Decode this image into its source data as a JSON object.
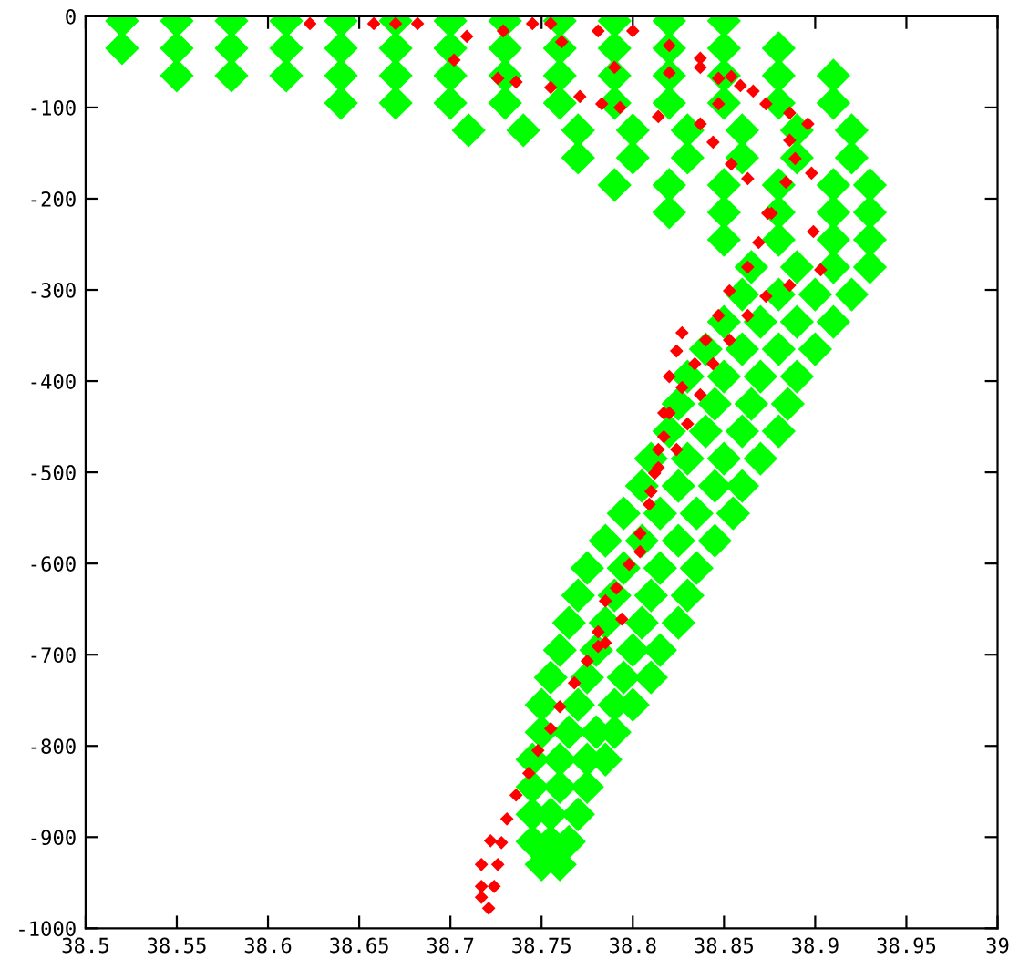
{
  "chart_data": {
    "type": "scatter",
    "xlim": [
      38.5,
      39
    ],
    "ylim": [
      -1000,
      0
    ],
    "xticks": [
      38.5,
      38.55,
      38.6,
      38.65,
      38.7,
      38.75,
      38.8,
      38.85,
      38.9,
      38.95,
      39
    ],
    "yticks": [
      -1000,
      -900,
      -800,
      -700,
      -600,
      -500,
      -400,
      -300,
      -200,
      -100,
      0
    ],
    "grid": false,
    "marker": "diamond",
    "series": [
      {
        "color": "#00ff00",
        "x": [
          38.52,
          38.55,
          38.58,
          38.61,
          38.64,
          38.67,
          38.7,
          38.73,
          38.76,
          38.79,
          38.82,
          38.85,
          38.52,
          38.55,
          38.58,
          38.61,
          38.64,
          38.67,
          38.7,
          38.73,
          38.76,
          38.79,
          38.82,
          38.85,
          38.88,
          38.55,
          38.58,
          38.61,
          38.64,
          38.67,
          38.7,
          38.73,
          38.76,
          38.79,
          38.82,
          38.85,
          38.88,
          38.91,
          38.64,
          38.67,
          38.7,
          38.73,
          38.76,
          38.79,
          38.82,
          38.85,
          38.88,
          38.91,
          38.71,
          38.74,
          38.77,
          38.8,
          38.83,
          38.86,
          38.89,
          38.92,
          38.77,
          38.8,
          38.83,
          38.86,
          38.89,
          38.92,
          38.79,
          38.82,
          38.85,
          38.88,
          38.91,
          38.93,
          38.82,
          38.85,
          38.88,
          38.91,
          38.93,
          38.85,
          38.88,
          38.91,
          38.93,
          38.865,
          38.89,
          38.91,
          38.93,
          38.86,
          38.88,
          38.9,
          38.92,
          38.85,
          38.87,
          38.89,
          38.91,
          38.84,
          38.86,
          38.88,
          38.9,
          38.83,
          38.85,
          38.87,
          38.89,
          38.825,
          38.845,
          38.865,
          38.885,
          38.82,
          38.84,
          38.86,
          38.88,
          38.81,
          38.83,
          38.85,
          38.87,
          38.805,
          38.825,
          38.845,
          38.86,
          38.795,
          38.815,
          38.835,
          38.855,
          38.785,
          38.805,
          38.825,
          38.845,
          38.775,
          38.795,
          38.815,
          38.835,
          38.77,
          38.79,
          38.81,
          38.83,
          38.765,
          38.785,
          38.805,
          38.825,
          38.76,
          38.78,
          38.8,
          38.815,
          38.755,
          38.775,
          38.795,
          38.81,
          38.75,
          38.77,
          38.79,
          38.8,
          38.75,
          38.765,
          38.78,
          38.79,
          38.745,
          38.76,
          38.775,
          38.785,
          38.745,
          38.76,
          38.775,
          38.745,
          38.755,
          38.77,
          38.745,
          38.755,
          38.765,
          38.75,
          38.76
        ],
        "values": [
          -5,
          -5,
          -5,
          -5,
          -5,
          -5,
          -5,
          -5,
          -5,
          -5,
          -5,
          -5,
          -35,
          -35,
          -35,
          -35,
          -35,
          -35,
          -35,
          -35,
          -35,
          -35,
          -35,
          -35,
          -35,
          -65,
          -65,
          -65,
          -65,
          -65,
          -65,
          -65,
          -65,
          -65,
          -65,
          -65,
          -65,
          -65,
          -95,
          -95,
          -95,
          -95,
          -95,
          -95,
          -95,
          -95,
          -95,
          -95,
          -125,
          -125,
          -125,
          -125,
          -125,
          -125,
          -125,
          -125,
          -155,
          -155,
          -155,
          -155,
          -155,
          -155,
          -185,
          -185,
          -185,
          -185,
          -185,
          -185,
          -215,
          -215,
          -215,
          -215,
          -215,
          -245,
          -245,
          -245,
          -245,
          -275,
          -275,
          -275,
          -275,
          -305,
          -305,
          -305,
          -305,
          -335,
          -335,
          -335,
          -335,
          -365,
          -365,
          -365,
          -365,
          -395,
          -395,
          -395,
          -395,
          -425,
          -425,
          -425,
          -425,
          -455,
          -455,
          -455,
          -455,
          -485,
          -485,
          -485,
          -485,
          -515,
          -515,
          -515,
          -515,
          -545,
          -545,
          -545,
          -545,
          -575,
          -575,
          -575,
          -575,
          -605,
          -605,
          -605,
          -605,
          -635,
          -635,
          -635,
          -635,
          -665,
          -665,
          -665,
          -665,
          -695,
          -695,
          -695,
          -695,
          -725,
          -725,
          -725,
          -725,
          -755,
          -755,
          -755,
          -755,
          -785,
          -785,
          -785,
          -785,
          -815,
          -815,
          -815,
          -815,
          -845,
          -845,
          -845,
          -875,
          -875,
          -875,
          -905,
          -905,
          -905,
          -930,
          -930
        ]
      },
      {
        "color": "#ff0000",
        "x": [
          38.623,
          38.658,
          38.67,
          38.682,
          38.745,
          38.755,
          38.702,
          38.726,
          38.736,
          38.755,
          38.771,
          38.783,
          38.793,
          38.814,
          38.709,
          38.729,
          38.761,
          38.781,
          38.8,
          38.82,
          38.837,
          38.854,
          38.866,
          38.79,
          38.82,
          38.847,
          38.837,
          38.859,
          38.847,
          38.873,
          38.886,
          38.896,
          38.898,
          38.899,
          38.903,
          38.886,
          38.889,
          38.884,
          38.876,
          38.869,
          38.863,
          38.853,
          38.847,
          38.84,
          38.834,
          38.827,
          38.82,
          38.817,
          38.812,
          38.837,
          38.844,
          38.854,
          38.863,
          38.874,
          38.886,
          38.873,
          38.863,
          38.853,
          38.844,
          38.837,
          38.83,
          38.824,
          38.827,
          38.824,
          38.82,
          38.817,
          38.814,
          38.814,
          38.809,
          38.804,
          38.798,
          38.791,
          38.785,
          38.781,
          38.781,
          38.775,
          38.768,
          38.76,
          38.755,
          38.748,
          38.743,
          38.736,
          38.731,
          38.728,
          38.722,
          38.726,
          38.717,
          38.724,
          38.717,
          38.717,
          38.721,
          38.81,
          38.804,
          38.794,
          38.785
        ],
        "values": [
          -8,
          -8,
          -8,
          -8,
          -8,
          -8,
          -48,
          -68,
          -72,
          -78,
          -88,
          -96,
          -100,
          -110,
          -22,
          -16,
          -28,
          -16,
          -16,
          -32,
          -46,
          -66,
          -82,
          -56,
          -62,
          -68,
          -56,
          -76,
          -96,
          -96,
          -106,
          -118,
          -172,
          -236,
          -278,
          -136,
          -156,
          -182,
          -216,
          -248,
          -275,
          -301,
          -328,
          -355,
          -381,
          -407,
          -435,
          -461,
          -501,
          -118,
          -138,
          -162,
          -178,
          -216,
          -295,
          -307,
          -328,
          -355,
          -381,
          -415,
          -447,
          -475,
          -347,
          -367,
          -395,
          -435,
          -475,
          -495,
          -535,
          -567,
          -601,
          -627,
          -641,
          -675,
          -691,
          -707,
          -731,
          -757,
          -781,
          -805,
          -830,
          -854,
          -880,
          -906,
          -904,
          -930,
          -930,
          -954,
          -954,
          -966,
          -978,
          -521,
          -587,
          -661,
          -687
        ]
      }
    ]
  }
}
